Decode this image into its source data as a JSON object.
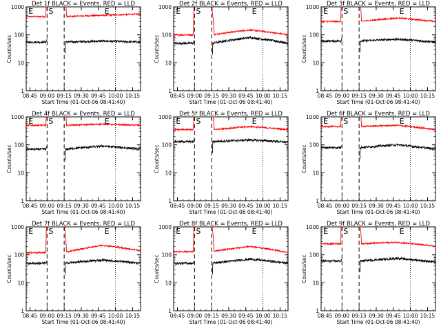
{
  "chart_data": {
    "type": "line",
    "layout": "3x3 grid",
    "y_scale": "log",
    "ylim": [
      1,
      1000
    ],
    "ylabel": "Counts/sec",
    "xlabel": "Start Time (01-Oct-06 08:41:40)",
    "xlim": [
      "08:41:40",
      "10:22:00"
    ],
    "x_ticks": [
      "08:45",
      "09:00",
      "09:15",
      "09:30",
      "09:45",
      "10:00",
      "10:15"
    ],
    "y_ticks": [
      "1",
      "10",
      "100",
      "1000"
    ],
    "series_legend": "BLACK = Events, RED = LLD",
    "colors": {
      "events": "#000000",
      "lld": "#ff0000"
    },
    "markers": {
      "eclipse_label": "E",
      "saa_label": "S"
    },
    "panels": [
      {
        "title": "Det 1f BLACK = Events, RED = LLD",
        "eclipse_end": "08:43",
        "saa_start": "09:00",
        "saa_end": "09:15",
        "eclipse_start": "10:00",
        "lld_start": 450,
        "lld_mid": 500,
        "lld_end": 550,
        "events_start": 55,
        "events_mid": 60,
        "events_end": 55
      },
      {
        "title": "Det 2f BLACK = Events, RED = LLD",
        "eclipse_end": "08:43",
        "saa_start": "09:00",
        "saa_end": "09:15",
        "eclipse_start": "10:00",
        "lld_start": 100,
        "lld_mid": 150,
        "lld_end": 100,
        "events_start": 50,
        "events_mid": 80,
        "events_end": 50
      },
      {
        "title": "Det 3f BLACK = Events, RED = LLD",
        "eclipse_end": "08:43",
        "saa_start": "09:00",
        "saa_end": "09:15",
        "eclipse_start": "10:00",
        "lld_start": 300,
        "lld_mid": 400,
        "lld_end": 300,
        "events_start": 60,
        "events_mid": 70,
        "events_end": 55
      },
      {
        "title": "Det 4f BLACK = Events, RED = LLD",
        "eclipse_end": "08:43",
        "saa_start": "09:00",
        "saa_end": "09:15",
        "eclipse_start": "10:00",
        "lld_start": 500,
        "lld_mid": 550,
        "lld_end": 500,
        "events_start": 70,
        "events_mid": 90,
        "events_end": 70
      },
      {
        "title": "Det 5f BLACK = Events, RED = LLD",
        "eclipse_end": "08:43",
        "saa_start": "09:00",
        "saa_end": "09:15",
        "eclipse_start": "10:00",
        "lld_start": 350,
        "lld_mid": 450,
        "lld_end": 350,
        "events_start": 130,
        "events_mid": 150,
        "events_end": 125
      },
      {
        "title": "Det 6f BLACK = Events, RED = LLD",
        "eclipse_end": "08:43",
        "saa_start": "09:00",
        "saa_end": "09:15",
        "eclipse_start": "10:00",
        "lld_start": 450,
        "lld_mid": 500,
        "lld_end": 350,
        "events_start": 80,
        "events_mid": 100,
        "events_end": 70
      },
      {
        "title": "Det 7f BLACK = Events, RED = LLD",
        "eclipse_end": "08:43",
        "saa_start": "09:00",
        "saa_end": "09:15",
        "eclipse_start": "10:00",
        "lld_start": 120,
        "lld_mid": 220,
        "lld_end": 140,
        "events_start": 50,
        "events_mid": 65,
        "events_end": 50
      },
      {
        "title": "Det 8f BLACK = Events, RED = LLD",
        "eclipse_end": "08:43",
        "saa_start": "09:00",
        "saa_end": "09:15",
        "eclipse_start": "10:00",
        "lld_start": 130,
        "lld_mid": 200,
        "lld_end": 120,
        "events_start": 50,
        "events_mid": 70,
        "events_end": 50
      },
      {
        "title": "Det 9f BLACK = Events, RED = LLD",
        "eclipse_end": "08:43",
        "saa_start": "09:00",
        "saa_end": "09:15",
        "eclipse_start": "10:00",
        "lld_start": 250,
        "lld_mid": 280,
        "lld_end": 200,
        "events_start": 60,
        "events_mid": 75,
        "events_end": 55
      }
    ]
  }
}
